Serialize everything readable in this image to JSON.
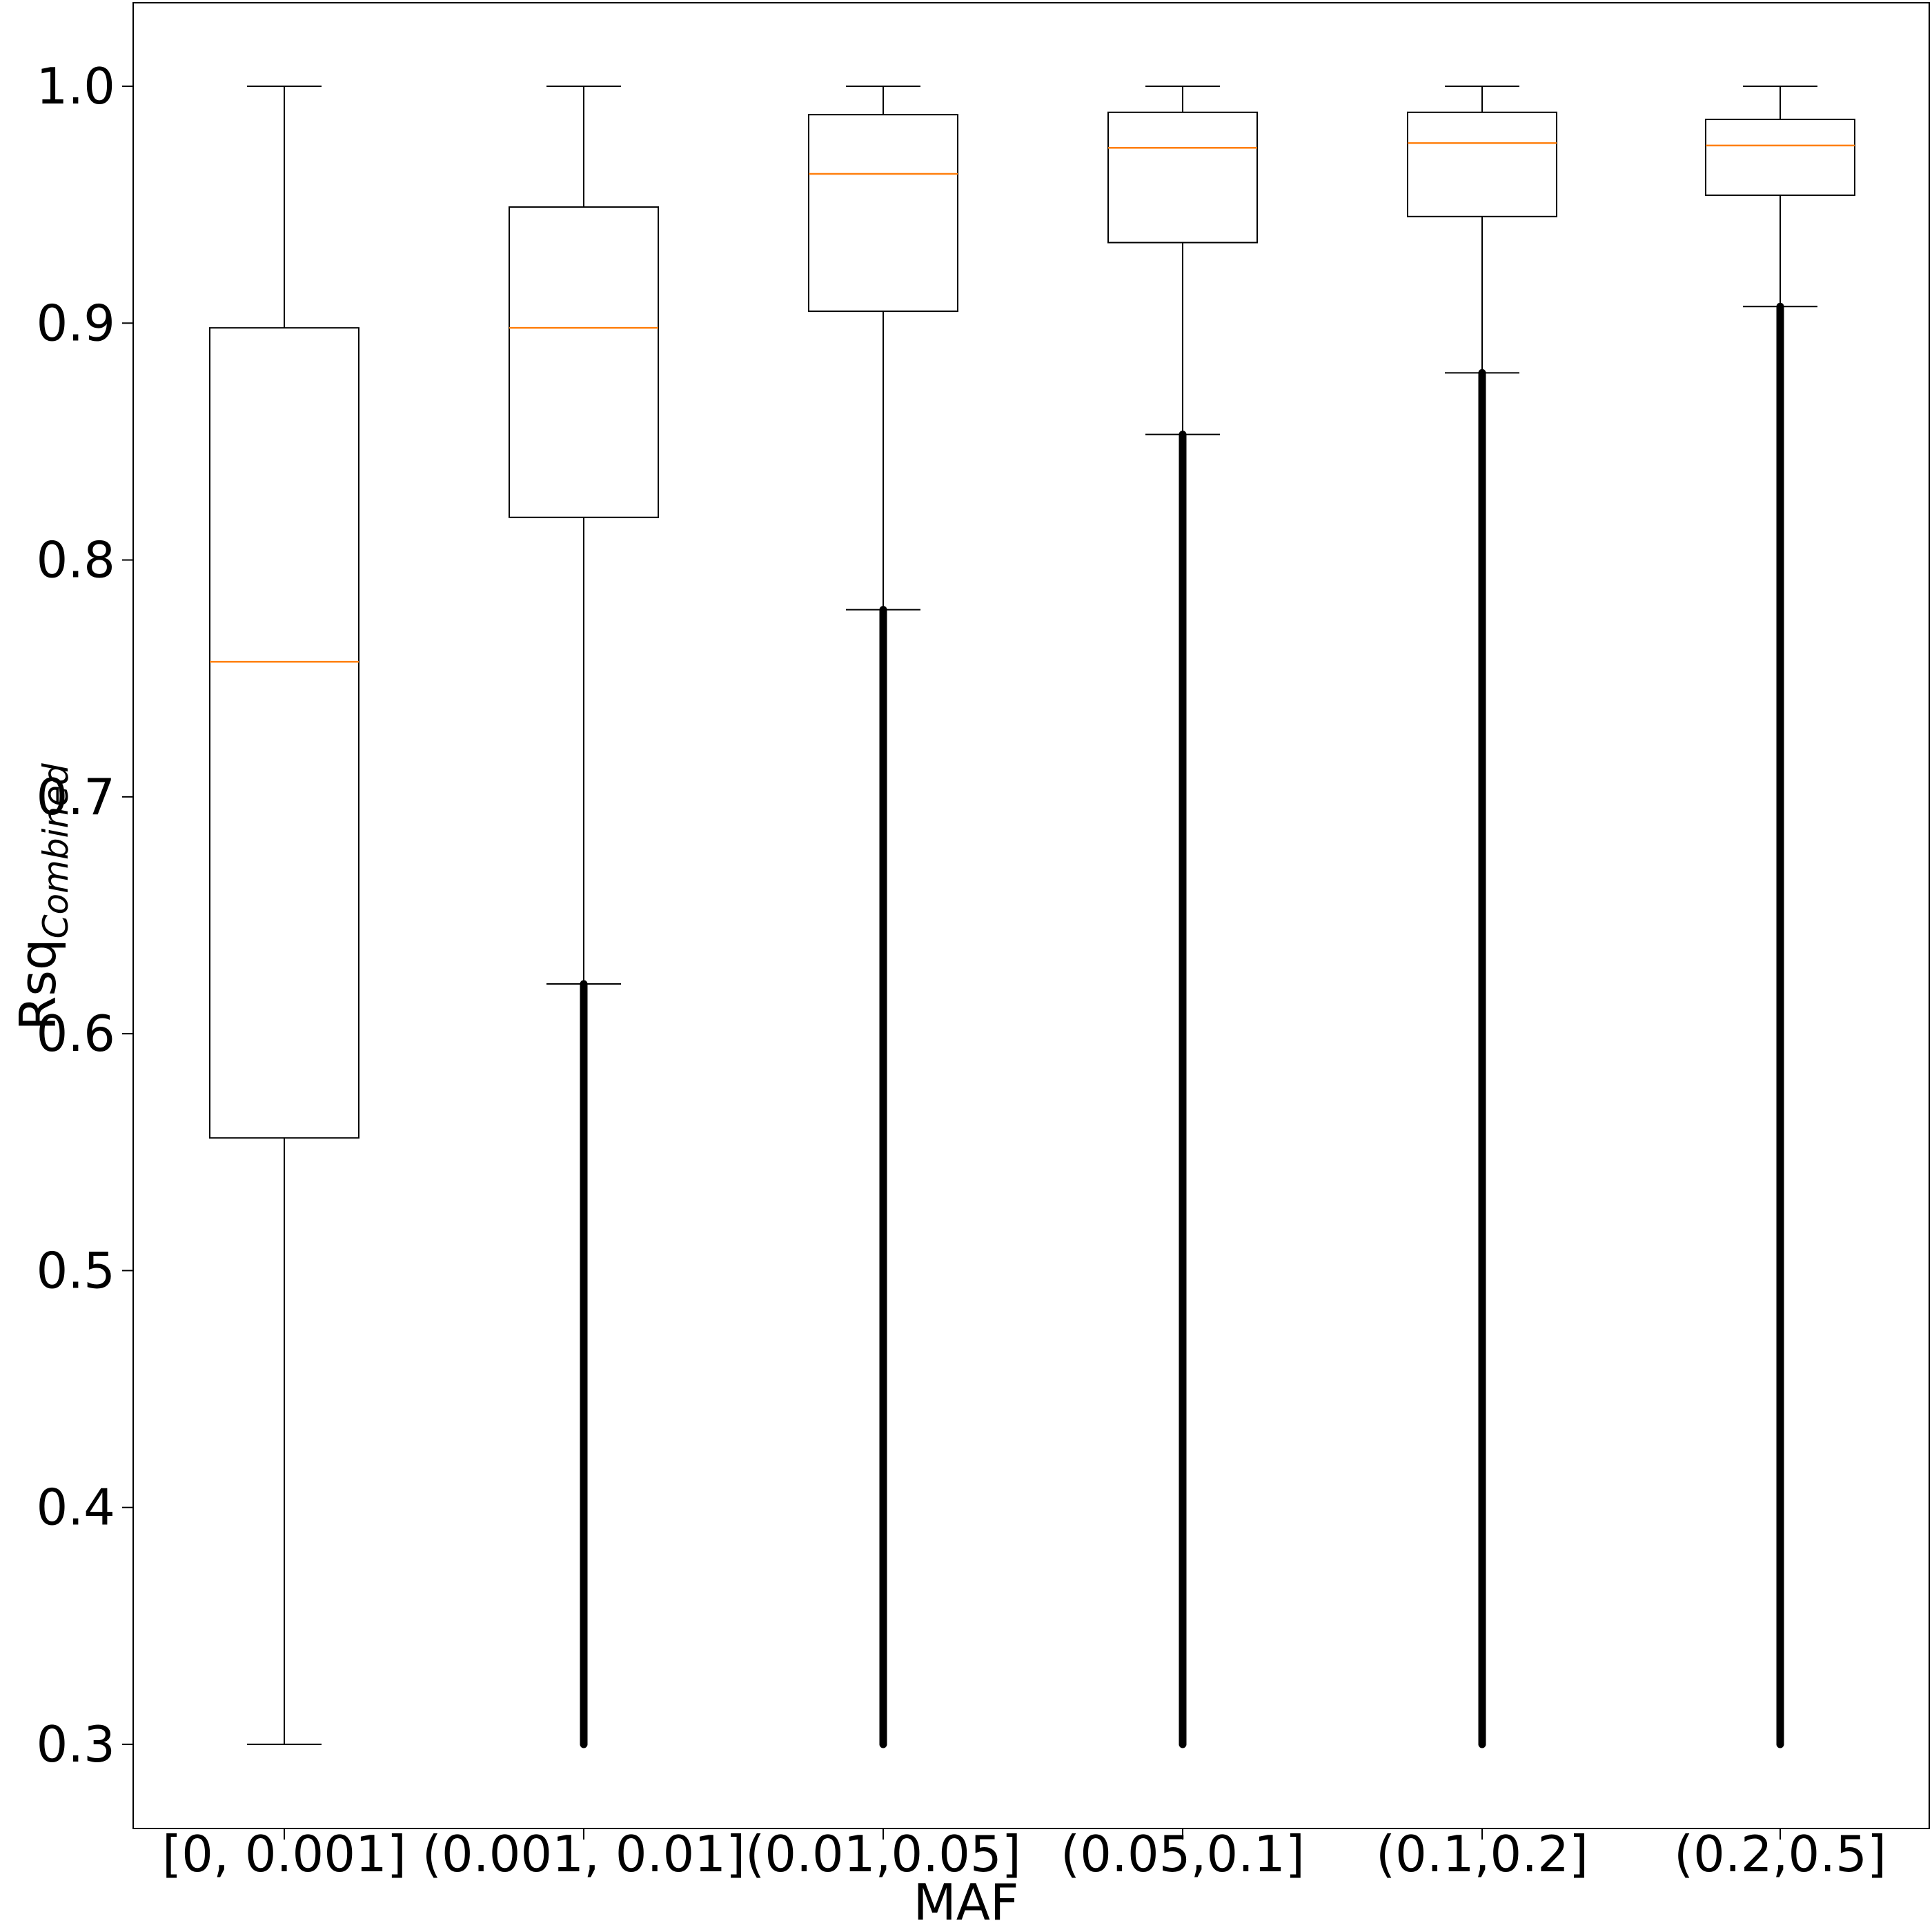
{
  "chart_data": {
    "type": "box",
    "title": "",
    "xlabel": "MAF",
    "ylabel": {
      "main": "Rsq",
      "subscript": "Combined"
    },
    "ylim": [
      0.265,
      1.035
    ],
    "yticks": [
      0.3,
      0.4,
      0.5,
      0.6,
      0.7,
      0.8,
      0.9,
      1.0
    ],
    "ytick_labels": [
      "0.3",
      "0.4",
      "0.5",
      "0.6",
      "0.7",
      "0.8",
      "0.9",
      "1.0"
    ],
    "grid": false,
    "colors": {
      "box": "#000000",
      "median": "#ff7f0e",
      "outliers": "#000000"
    },
    "categories": [
      "[0, 0.001]",
      "(0.001, 0.01]",
      "(0.01,0.05]",
      "(0.05,0.1]",
      "(0.1,0.2]",
      "(0.2,0.5]"
    ],
    "boxes": [
      {
        "whisker_low": 0.3,
        "q1": 0.556,
        "median": 0.757,
        "q3": 0.898,
        "whisker_high": 1.0,
        "outliers_range": null
      },
      {
        "whisker_low": 0.621,
        "q1": 0.818,
        "median": 0.898,
        "q3": 0.949,
        "whisker_high": 1.0,
        "outliers_range": [
          0.3,
          0.621
        ]
      },
      {
        "whisker_low": 0.779,
        "q1": 0.905,
        "median": 0.963,
        "q3": 0.988,
        "whisker_high": 1.0,
        "outliers_range": [
          0.3,
          0.779
        ]
      },
      {
        "whisker_low": 0.853,
        "q1": 0.934,
        "median": 0.974,
        "q3": 0.989,
        "whisker_high": 1.0,
        "outliers_range": [
          0.3,
          0.853
        ]
      },
      {
        "whisker_low": 0.879,
        "q1": 0.945,
        "median": 0.976,
        "q3": 0.989,
        "whisker_high": 1.0,
        "outliers_range": [
          0.3,
          0.879
        ]
      },
      {
        "whisker_low": 0.907,
        "q1": 0.954,
        "median": 0.975,
        "q3": 0.986,
        "whisker_high": 1.0,
        "outliers_range": [
          0.3,
          0.907
        ]
      }
    ]
  }
}
